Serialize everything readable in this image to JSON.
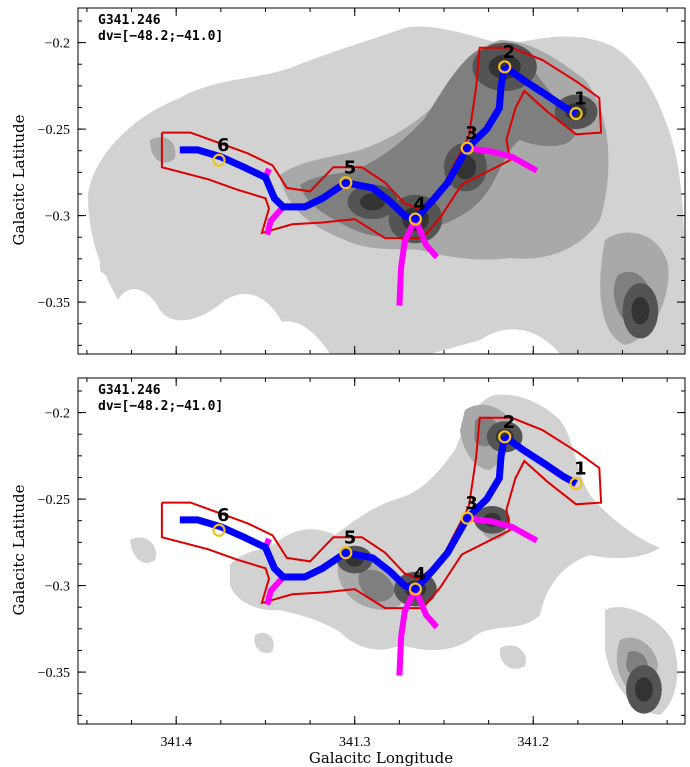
{
  "figure": {
    "xlabel": "Galacitc Longitude",
    "ylabel": "Galacitc Latitude",
    "x_tick_labels": [
      "341.4",
      "341.3",
      "341.2"
    ],
    "y_tick_labels": [
      "−0.2",
      "−0.25",
      "−0.3",
      "−0.35"
    ]
  },
  "colors": {
    "filament_spine": "#0000ff",
    "branches": "#ff00ff",
    "outline": "#dd0000",
    "node_marker": "#f0c020",
    "contour_levels": [
      "#d2d2d2",
      "#a9a9a9",
      "#7f7f7f",
      "#545454",
      "#333333"
    ]
  },
  "chart_data": [
    {
      "type": "contour",
      "annotation": [
        "G341.246",
        "dv=[−48.2;−41.0]"
      ],
      "xlim": [
        341.455,
        341.115
      ],
      "ylim": [
        -0.38,
        -0.18
      ],
      "x_ticks": [
        341.4,
        341.3,
        341.2
      ],
      "y_ticks": [
        -0.2,
        -0.25,
        -0.3,
        -0.35
      ],
      "nodes": [
        {
          "label": "1",
          "x": 341.176,
          "y": -0.241
        },
        {
          "label": "2",
          "x": 341.216,
          "y": -0.214
        },
        {
          "label": "3",
          "x": 341.237,
          "y": -0.261
        },
        {
          "label": "4",
          "x": 341.266,
          "y": -0.302
        },
        {
          "label": "5",
          "x": 341.305,
          "y": -0.281
        },
        {
          "label": "6",
          "x": 341.376,
          "y": -0.268
        }
      ]
    },
    {
      "type": "contour",
      "annotation": [
        "G341.246",
        "dv=[−48.2;−41.0]"
      ],
      "xlim": [
        341.455,
        341.115
      ],
      "ylim": [
        -0.38,
        -0.18
      ],
      "x_ticks": [
        341.4,
        341.3,
        341.2
      ],
      "y_ticks": [
        -0.2,
        -0.25,
        -0.3,
        -0.35
      ],
      "nodes": [
        {
          "label": "1",
          "x": 341.176,
          "y": -0.241
        },
        {
          "label": "2",
          "x": 341.216,
          "y": -0.214
        },
        {
          "label": "3",
          "x": 341.237,
          "y": -0.261
        },
        {
          "label": "4",
          "x": 341.266,
          "y": -0.302
        },
        {
          "label": "5",
          "x": 341.305,
          "y": -0.281
        },
        {
          "label": "6",
          "x": 341.376,
          "y": -0.268
        }
      ]
    }
  ],
  "filament": {
    "spine_main": [
      [
        341.398,
        -0.262
      ],
      [
        341.388,
        -0.262
      ],
      [
        341.375,
        -0.266
      ],
      [
        341.362,
        -0.272
      ],
      [
        341.35,
        -0.278
      ],
      [
        341.345,
        -0.29
      ],
      [
        341.34,
        -0.295
      ],
      [
        341.328,
        -0.295
      ],
      [
        341.318,
        -0.29
      ],
      [
        341.305,
        -0.281
      ],
      [
        341.29,
        -0.284
      ],
      [
        341.28,
        -0.292
      ],
      [
        341.272,
        -0.3
      ],
      [
        341.266,
        -0.302
      ],
      [
        341.257,
        -0.292
      ],
      [
        341.248,
        -0.281
      ],
      [
        341.237,
        -0.261
      ],
      [
        341.226,
        -0.25
      ],
      [
        341.219,
        -0.238
      ],
      [
        341.218,
        -0.225
      ],
      [
        341.216,
        -0.214
      ]
    ],
    "spine_right": [
      [
        341.216,
        -0.214
      ],
      [
        341.205,
        -0.222
      ],
      [
        341.193,
        -0.23
      ],
      [
        341.183,
        -0.237
      ],
      [
        341.176,
        -0.241
      ]
    ],
    "branches": [
      [
        [
          341.35,
          -0.278
        ],
        [
          341.348,
          -0.273
        ]
      ],
      [
        [
          341.34,
          -0.295
        ],
        [
          341.347,
          -0.303
        ],
        [
          341.349,
          -0.311
        ]
      ],
      [
        [
          341.266,
          -0.302
        ],
        [
          341.272,
          -0.315
        ],
        [
          341.274,
          -0.33
        ],
        [
          341.275,
          -0.352
        ]
      ],
      [
        [
          341.266,
          -0.302
        ],
        [
          341.26,
          -0.317
        ],
        [
          341.254,
          -0.324
        ]
      ],
      [
        [
          341.237,
          -0.261
        ],
        [
          341.223,
          -0.263
        ],
        [
          341.212,
          -0.266
        ],
        [
          341.198,
          -0.274
        ]
      ]
    ],
    "outline": [
      [
        341.408,
        -0.252
      ],
      [
        341.392,
        -0.252
      ],
      [
        341.376,
        -0.258
      ],
      [
        341.36,
        -0.264
      ],
      [
        341.346,
        -0.271
      ],
      [
        341.338,
        -0.284
      ],
      [
        341.325,
        -0.286
      ],
      [
        341.312,
        -0.272
      ],
      [
        341.296,
        -0.272
      ],
      [
        341.283,
        -0.281
      ],
      [
        341.272,
        -0.293
      ],
      [
        341.264,
        -0.296
      ],
      [
        341.252,
        -0.286
      ],
      [
        341.244,
        -0.27
      ],
      [
        341.236,
        -0.254
      ],
      [
        341.232,
        -0.226
      ],
      [
        341.23,
        -0.203
      ],
      [
        341.212,
        -0.203
      ],
      [
        341.195,
        -0.21
      ],
      [
        341.175,
        -0.223
      ],
      [
        341.163,
        -0.232
      ],
      [
        341.162,
        -0.252
      ],
      [
        341.176,
        -0.253
      ],
      [
        341.192,
        -0.24
      ],
      [
        341.205,
        -0.228
      ],
      [
        341.21,
        -0.238
      ],
      [
        341.215,
        -0.256
      ],
      [
        341.213,
        -0.268
      ],
      [
        341.24,
        -0.282
      ],
      [
        341.252,
        -0.301
      ],
      [
        341.262,
        -0.313
      ],
      [
        341.283,
        -0.313
      ],
      [
        341.3,
        -0.302
      ],
      [
        341.318,
        -0.304
      ],
      [
        341.335,
        -0.305
      ],
      [
        341.352,
        -0.31
      ],
      [
        341.348,
        -0.296
      ],
      [
        341.35,
        -0.29
      ],
      [
        341.366,
        -0.285
      ],
      [
        341.382,
        -0.279
      ],
      [
        341.408,
        -0.272
      ],
      [
        341.408,
        -0.252
      ]
    ],
    "panels": [
      {
        "dark_cores": [
          [
            341.216,
            -0.214,
            0.018,
            0.014
          ],
          [
            341.176,
            -0.24,
            0.012,
            0.01
          ],
          [
            341.266,
            -0.302,
            0.015,
            0.014
          ],
          [
            341.238,
            -0.272,
            0.012,
            0.014
          ],
          [
            341.29,
            -0.292,
            0.014,
            0.01
          ],
          [
            341.14,
            -0.355,
            0.01,
            0.016
          ]
        ]
      },
      {
        "dark_cores": [
          [
            341.216,
            -0.214,
            0.01,
            0.009
          ],
          [
            341.266,
            -0.302,
            0.012,
            0.01
          ],
          [
            341.3,
            -0.285,
            0.01,
            0.008
          ],
          [
            341.138,
            -0.36,
            0.01,
            0.014
          ],
          [
            341.223,
            -0.262,
            0.01,
            0.008
          ]
        ]
      }
    ]
  }
}
